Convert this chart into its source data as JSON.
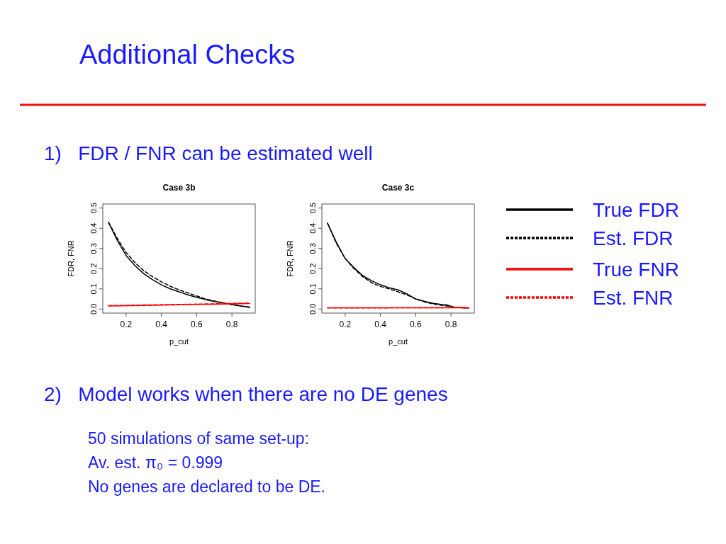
{
  "chart_data": [
    {
      "type": "other",
      "title": "Additional Checks",
      "annotations": [
        "1)   FDR / FNR can be estimated well",
        "2)   Model works when there are no DE genes",
        "50 simulations of same set-up:",
        "Av. est. π₀ = 0.999",
        "No genes are declared to be DE."
      ]
    },
    {
      "type": "line",
      "title": "Case 3b",
      "xlabel": "p_cut",
      "ylabel": "FDR, FNR",
      "xlim": [
        0.068,
        0.932
      ],
      "ylim": [
        -0.02,
        0.52
      ],
      "xticks": [
        0.2,
        0.4,
        0.6,
        0.8
      ],
      "yticks": [
        {
          "value": 0,
          "label": "0.0"
        },
        0.1,
        0.2,
        0.3,
        0.4,
        0.5
      ],
      "legend": "right",
      "series": [
        {
          "name": "True FDR",
          "color": "#000000",
          "line_style": "solid",
          "x": [
            0.1,
            0.15,
            0.2,
            0.25,
            0.3,
            0.35,
            0.4,
            0.45,
            0.5,
            0.55,
            0.6,
            0.65,
            0.7,
            0.75,
            0.8,
            0.85,
            0.9
          ],
          "values": [
            0.43,
            0.34,
            0.265,
            0.215,
            0.175,
            0.145,
            0.12,
            0.1,
            0.085,
            0.07,
            0.058,
            0.047,
            0.038,
            0.03,
            0.022,
            0.015,
            0.01
          ]
        },
        {
          "name": "Est. FDR",
          "color": "#000000",
          "line_style": "dashed",
          "x": [
            0.1,
            0.15,
            0.2,
            0.25,
            0.3,
            0.35,
            0.4,
            0.45,
            0.5,
            0.55,
            0.6,
            0.65,
            0.7,
            0.75,
            0.8,
            0.85,
            0.9
          ],
          "values": [
            0.43,
            0.35,
            0.28,
            0.23,
            0.19,
            0.16,
            0.135,
            0.113,
            0.095,
            0.08,
            0.065,
            0.05,
            0.04,
            0.03,
            0.022,
            0.015,
            0.008
          ]
        },
        {
          "name": "True FNR",
          "color": "#ff0000",
          "line_style": "solid",
          "x": [
            0.1,
            0.3,
            0.5,
            0.7,
            0.9
          ],
          "values": [
            0.015,
            0.018,
            0.021,
            0.024,
            0.027
          ]
        },
        {
          "name": "Est. FNR",
          "color": "#ff0000",
          "line_style": "dashed",
          "x": [
            0.1,
            0.3,
            0.5,
            0.7,
            0.9
          ],
          "values": [
            0.017,
            0.02,
            0.023,
            0.026,
            0.03
          ]
        }
      ]
    },
    {
      "type": "line",
      "title": "Case 3c",
      "xlabel": "p_cut",
      "ylabel": "FDR, FNR",
      "xlim": [
        0.068,
        0.932
      ],
      "ylim": [
        -0.02,
        0.52
      ],
      "xticks": [
        0.2,
        0.4,
        0.6,
        0.8
      ],
      "yticks": [
        {
          "value": 0,
          "label": "0.0"
        },
        0.1,
        0.2,
        0.3,
        0.4,
        0.5
      ],
      "series": [
        {
          "color": "#000000",
          "line_style": "solid",
          "x": [
            0.1,
            0.15,
            0.2,
            0.25,
            0.3,
            0.35,
            0.4,
            0.45,
            0.5,
            0.55,
            0.6,
            0.65,
            0.7,
            0.75,
            0.78,
            0.82,
            0.9
          ],
          "values": [
            0.425,
            0.33,
            0.25,
            0.205,
            0.165,
            0.14,
            0.12,
            0.105,
            0.095,
            0.075,
            0.05,
            0.038,
            0.028,
            0.022,
            0.02,
            0.008,
            0.005
          ]
        },
        {
          "color": "#000000",
          "line_style": "dashed",
          "x": [
            0.1,
            0.15,
            0.2,
            0.25,
            0.3,
            0.35,
            0.4,
            0.45,
            0.5,
            0.55,
            0.6,
            0.65,
            0.7,
            0.75,
            0.78,
            0.82,
            0.9
          ],
          "values": [
            0.425,
            0.325,
            0.25,
            0.2,
            0.16,
            0.13,
            0.112,
            0.1,
            0.085,
            0.07,
            0.05,
            0.035,
            0.025,
            0.018,
            0.015,
            0.008,
            0.005
          ]
        },
        {
          "color": "#ff0000",
          "line_style": "solid",
          "x": [
            0.1,
            0.5,
            0.9
          ],
          "values": [
            0.006,
            0.006,
            0.006
          ]
        },
        {
          "color": "#ff0000",
          "line_style": "dashed",
          "x": [
            0.1,
            0.5,
            0.9
          ],
          "values": [
            0.005,
            0.006,
            0.007
          ]
        }
      ]
    }
  ]
}
